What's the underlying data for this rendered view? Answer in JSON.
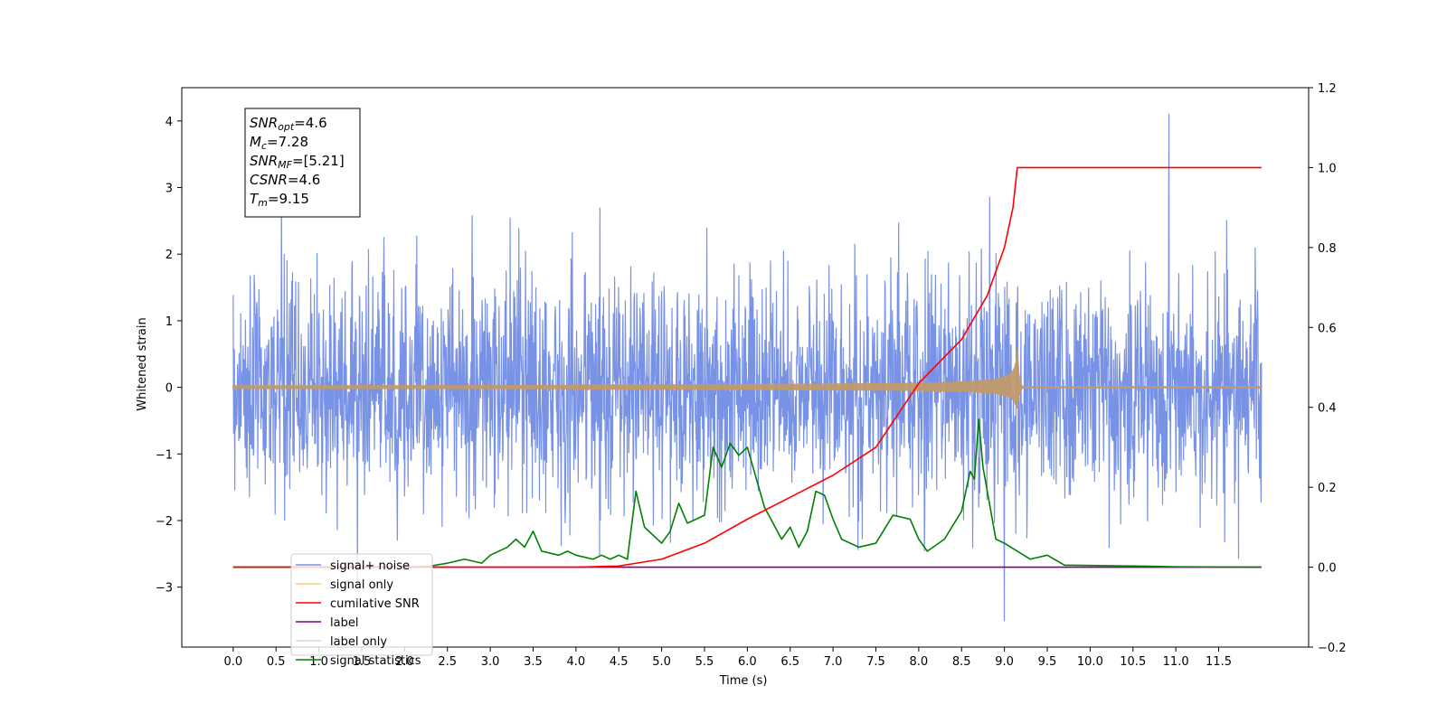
{
  "chart_data": {
    "type": "line",
    "xlabel": "Time (s)",
    "ylabel_left": "Whitened strain",
    "ylabel_right": "",
    "xlim": [
      -0.6,
      12.55
    ],
    "ylim_left": [
      -3.9,
      4.5
    ],
    "ylim_right": [
      -0.2,
      1.2
    ],
    "x_ticks": [
      "0.0",
      "0.5",
      "1.0",
      "1.5",
      "2.0",
      "2.5",
      "3.0",
      "3.5",
      "4.0",
      "4.5",
      "5.0",
      "5.5",
      "6.0",
      "6.5",
      "7.0",
      "7.5",
      "8.0",
      "8.5",
      "9.0",
      "9.5",
      "10.0",
      "10.5",
      "11.0",
      "11.5"
    ],
    "x_tick_values": [
      0,
      0.5,
      1,
      1.5,
      2,
      2.5,
      3,
      3.5,
      4,
      4.5,
      5,
      5.5,
      6,
      6.5,
      7,
      7.5,
      8,
      8.5,
      9,
      9.5,
      10,
      10.5,
      11,
      11.5
    ],
    "y_left_ticks": [
      -3,
      -2,
      -1,
      0,
      1,
      2,
      3,
      4
    ],
    "y_left_tick_labels": [
      "−3",
      "−2",
      "−1",
      "0",
      "1",
      "2",
      "3",
      "4"
    ],
    "y_right_ticks": [
      -0.2,
      0.0,
      0.2,
      0.4,
      0.6,
      0.8,
      1.0,
      1.2
    ],
    "y_right_tick_labels": [
      "−0.2",
      "0.0",
      "0.2",
      "0.4",
      "0.6",
      "0.8",
      "1.0",
      "1.2"
    ],
    "grid": false,
    "legend_position": "lower-left",
    "annotation": {
      "lines": [
        {
          "base": "SNR",
          "sub": "opt",
          "value": "=4.6"
        },
        {
          "base": "M",
          "sub": "c",
          "value": "=7.28"
        },
        {
          "base": "SNR",
          "sub": "MF",
          "value": "=[5.21]"
        },
        {
          "base": "CSNR",
          "sub": "",
          "value": "=4.6"
        },
        {
          "base": "T",
          "sub": "m",
          "value": "=9.15"
        }
      ]
    },
    "series": [
      {
        "name": "signal+ noise",
        "axis": "left",
        "color": "#7892e6",
        "t_start": 0.0,
        "t_end": 12.0,
        "sigma": 1.0,
        "peak_max": 4.1,
        "peak_max_time": 10.92,
        "trough_min": -3.5,
        "trough_min_time": 9.0
      },
      {
        "name": "signal only",
        "axis": "left",
        "color": "#ffb347",
        "t_start": 0.0,
        "t_end": 12.0,
        "merger_time": 9.15,
        "peak_amplitude": 0.57
      },
      {
        "name": "cumilative SNR",
        "axis": "right",
        "color": "#ff0000",
        "points": [
          [
            0,
            0
          ],
          [
            4,
            0
          ],
          [
            4.5,
            0.003
          ],
          [
            5,
            0.02
          ],
          [
            5.5,
            0.06
          ],
          [
            6,
            0.12
          ],
          [
            6.5,
            0.175
          ],
          [
            7,
            0.23
          ],
          [
            7.5,
            0.3
          ],
          [
            8,
            0.46
          ],
          [
            8.5,
            0.57
          ],
          [
            8.8,
            0.68
          ],
          [
            9.0,
            0.8
          ],
          [
            9.1,
            0.9
          ],
          [
            9.15,
            1.0
          ],
          [
            12.0,
            1.0
          ]
        ]
      },
      {
        "name": "label",
        "axis": "right",
        "color": "#800080",
        "points": [
          [
            0,
            0
          ],
          [
            12,
            0
          ]
        ]
      },
      {
        "name": "label only",
        "axis": "right",
        "color": "#d9d9d9",
        "points": []
      },
      {
        "name": "signal statistics",
        "axis": "right",
        "color": "#008000",
        "points": [
          [
            0,
            0
          ],
          [
            2,
            0
          ],
          [
            2.3,
            0.003
          ],
          [
            2.5,
            0.01
          ],
          [
            2.7,
            0.02
          ],
          [
            2.9,
            0.01
          ],
          [
            3.0,
            0.03
          ],
          [
            3.2,
            0.05
          ],
          [
            3.3,
            0.07
          ],
          [
            3.4,
            0.05
          ],
          [
            3.5,
            0.09
          ],
          [
            3.6,
            0.04
          ],
          [
            3.8,
            0.03
          ],
          [
            3.9,
            0.04
          ],
          [
            4.0,
            0.03
          ],
          [
            4.2,
            0.02
          ],
          [
            4.3,
            0.03
          ],
          [
            4.4,
            0.02
          ],
          [
            4.5,
            0.03
          ],
          [
            4.6,
            0.02
          ],
          [
            4.7,
            0.19
          ],
          [
            4.8,
            0.1
          ],
          [
            5.0,
            0.06
          ],
          [
            5.1,
            0.09
          ],
          [
            5.2,
            0.16
          ],
          [
            5.3,
            0.11
          ],
          [
            5.5,
            0.13
          ],
          [
            5.6,
            0.3
          ],
          [
            5.7,
            0.25
          ],
          [
            5.8,
            0.31
          ],
          [
            5.9,
            0.28
          ],
          [
            6.0,
            0.3
          ],
          [
            6.2,
            0.15
          ],
          [
            6.4,
            0.07
          ],
          [
            6.5,
            0.1
          ],
          [
            6.6,
            0.05
          ],
          [
            6.7,
            0.09
          ],
          [
            6.8,
            0.19
          ],
          [
            6.9,
            0.18
          ],
          [
            7.0,
            0.12
          ],
          [
            7.1,
            0.07
          ],
          [
            7.3,
            0.05
          ],
          [
            7.5,
            0.06
          ],
          [
            7.7,
            0.13
          ],
          [
            7.9,
            0.12
          ],
          [
            8.0,
            0.07
          ],
          [
            8.1,
            0.04
          ],
          [
            8.3,
            0.07
          ],
          [
            8.5,
            0.14
          ],
          [
            8.6,
            0.24
          ],
          [
            8.65,
            0.22
          ],
          [
            8.7,
            0.37
          ],
          [
            8.75,
            0.25
          ],
          [
            8.9,
            0.07
          ],
          [
            9.0,
            0.06
          ],
          [
            9.3,
            0.02
          ],
          [
            9.5,
            0.03
          ],
          [
            9.7,
            0.005
          ],
          [
            10.5,
            0.003
          ],
          [
            11.0,
            0.001
          ],
          [
            12.0,
            0
          ]
        ]
      }
    ]
  }
}
